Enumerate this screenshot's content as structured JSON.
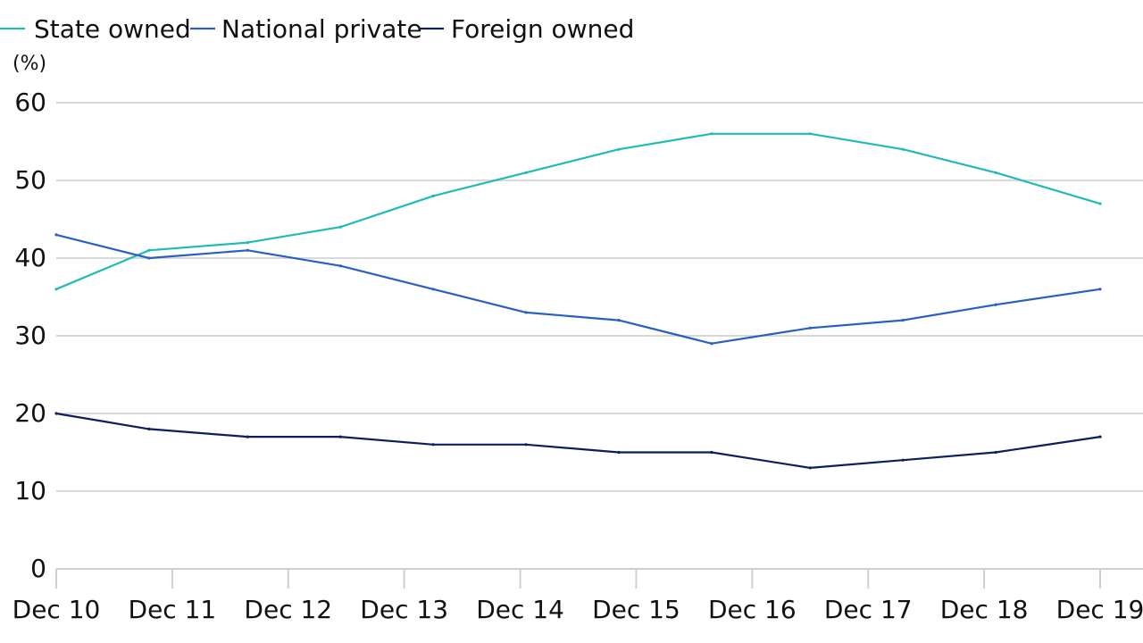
{
  "chart_data": {
    "type": "line",
    "title": "",
    "xlabel": "",
    "ylabel": "(%)",
    "ylim": [
      0,
      60
    ],
    "yticks": [
      0,
      10,
      20,
      30,
      40,
      50,
      60
    ],
    "categories": [
      "Dec 10",
      "Dec 11",
      "Dec 12",
      "Dec 13",
      "Dec 14",
      "Dec 15",
      "Dec 16",
      "Dec 17",
      "Dec 18",
      "Dec 19"
    ],
    "grid": true,
    "legend_position": "top-left",
    "series": [
      {
        "name": "State owned",
        "color": "#1fbcb4",
        "x": [
          0,
          0.8,
          1.65,
          2.45,
          3.25,
          4.05,
          4.85,
          5.65,
          6.5,
          7.3,
          8.1,
          9.0
        ],
        "values": [
          36,
          41,
          42,
          44,
          48,
          51,
          54,
          56,
          56,
          54,
          51,
          47
        ]
      },
      {
        "name": "National private",
        "color": "#2a5fc2",
        "x": [
          0,
          0.8,
          1.65,
          2.45,
          3.25,
          4.05,
          4.85,
          5.65,
          6.5,
          7.3,
          8.1,
          9.0
        ],
        "values": [
          43,
          40,
          41,
          39,
          36,
          33,
          32,
          29,
          31,
          32,
          34,
          36
        ]
      },
      {
        "name": "Foreign owned",
        "color": "#0b1f5c",
        "x": [
          0,
          0.8,
          1.65,
          2.45,
          3.25,
          4.05,
          4.85,
          5.65,
          6.5,
          7.3,
          8.1,
          9.0
        ],
        "values": [
          20,
          18,
          17,
          17,
          16,
          16,
          15,
          15,
          13,
          14,
          15,
          17
        ]
      }
    ]
  }
}
